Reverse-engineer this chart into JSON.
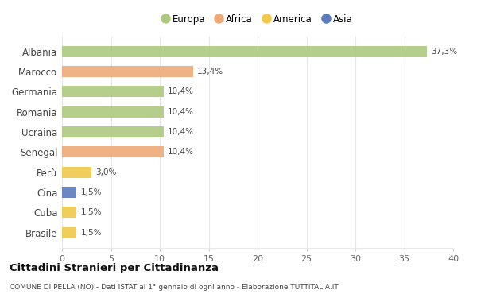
{
  "categories": [
    "Albania",
    "Marocco",
    "Germania",
    "Romania",
    "Ucraina",
    "Senegal",
    "Perù",
    "Cina",
    "Cuba",
    "Brasile"
  ],
  "values": [
    37.3,
    13.4,
    10.4,
    10.4,
    10.4,
    10.4,
    3.0,
    1.5,
    1.5,
    1.5
  ],
  "labels": [
    "37,3%",
    "13,4%",
    "10,4%",
    "10,4%",
    "10,4%",
    "10,4%",
    "3,0%",
    "1,5%",
    "1,5%",
    "1,5%"
  ],
  "colors": [
    "#adc97e",
    "#edaa78",
    "#adc97e",
    "#adc97e",
    "#adc97e",
    "#edaa78",
    "#f0c84a",
    "#5b7bbf",
    "#f0c84a",
    "#f0c84a"
  ],
  "legend": [
    {
      "label": "Europa",
      "color": "#adc97e"
    },
    {
      "label": "Africa",
      "color": "#edaa78"
    },
    {
      "label": "America",
      "color": "#f0c84a"
    },
    {
      "label": "Asia",
      "color": "#5b7bbf"
    }
  ],
  "xlim": [
    0,
    40
  ],
  "xticks": [
    0,
    5,
    10,
    15,
    20,
    25,
    30,
    35,
    40
  ],
  "title": "Cittadini Stranieri per Cittadinanza",
  "subtitle": "COMUNE DI PELLA (NO) - Dati ISTAT al 1° gennaio di ogni anno - Elaborazione TUTTITALIA.IT",
  "background_color": "#ffffff",
  "grid_color": "#e8e8e8",
  "bar_height": 0.55
}
